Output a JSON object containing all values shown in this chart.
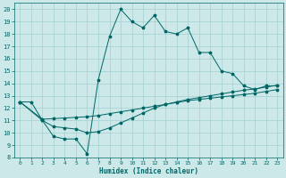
{
  "xlabel": "Humidex (Indice chaleur)",
  "xlim": [
    -0.5,
    23.5
  ],
  "ylim": [
    8,
    20.5
  ],
  "xticks": [
    0,
    1,
    2,
    3,
    4,
    5,
    6,
    7,
    8,
    9,
    10,
    11,
    12,
    13,
    14,
    15,
    16,
    17,
    18,
    19,
    20,
    21,
    22,
    23
  ],
  "yticks": [
    8,
    9,
    10,
    11,
    12,
    13,
    14,
    15,
    16,
    17,
    18,
    19,
    20
  ],
  "bg_color": "#cce8e8",
  "grid_color": "#aad4d4",
  "line_color": "#006666",
  "line1_x": [
    0,
    1,
    2,
    3,
    4,
    5,
    6,
    7,
    8,
    9,
    10,
    11,
    12,
    13,
    14,
    15,
    16,
    17,
    18,
    19,
    20,
    21,
    22,
    23
  ],
  "line1_y": [
    12.5,
    12.5,
    11.0,
    9.7,
    9.5,
    9.5,
    8.3,
    14.3,
    17.8,
    20.0,
    19.0,
    18.5,
    19.5,
    18.2,
    18.0,
    18.5,
    16.5,
    16.5,
    15.0,
    14.8,
    13.8,
    13.5,
    13.8,
    13.8
  ],
  "line2_x": [
    0,
    2,
    3,
    4,
    5,
    6,
    7,
    8,
    9,
    10,
    11,
    12,
    13,
    14,
    15,
    16,
    17,
    18,
    19,
    20,
    21,
    22,
    23
  ],
  "line2_y": [
    12.5,
    11.1,
    11.15,
    11.2,
    11.25,
    11.3,
    11.4,
    11.55,
    11.7,
    11.85,
    12.0,
    12.15,
    12.3,
    12.45,
    12.6,
    12.7,
    12.8,
    12.9,
    13.0,
    13.1,
    13.2,
    13.35,
    13.5
  ],
  "line3_x": [
    0,
    2,
    3,
    4,
    5,
    6,
    7,
    8,
    9,
    10,
    11,
    12,
    13,
    14,
    15,
    16,
    17,
    18,
    19,
    20,
    21,
    22,
    23
  ],
  "line3_y": [
    12.5,
    11.0,
    10.5,
    10.4,
    10.3,
    10.0,
    10.1,
    10.4,
    10.8,
    11.2,
    11.6,
    12.0,
    12.3,
    12.5,
    12.7,
    12.85,
    13.0,
    13.15,
    13.3,
    13.45,
    13.55,
    13.7,
    13.85
  ]
}
